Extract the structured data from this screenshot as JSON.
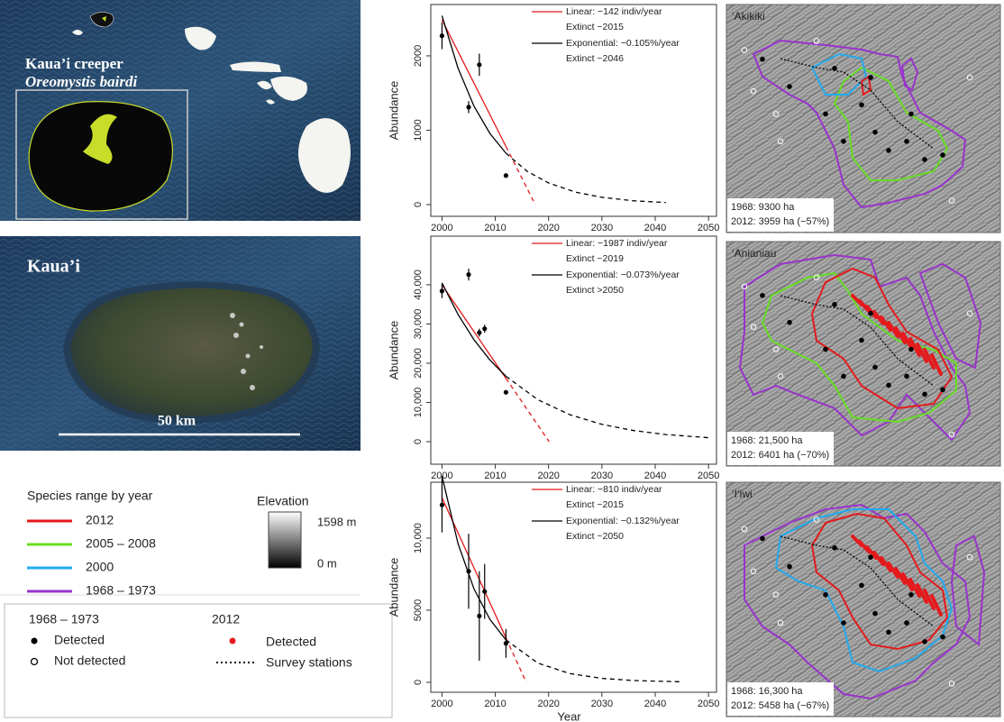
{
  "chart_data": [
    {
      "type": "scatter",
      "y_label": "Abundance",
      "xlim": [
        1997.9,
        2051.5
      ],
      "xticks": [
        2000,
        2010,
        2020,
        2030,
        2040,
        2050
      ],
      "ylim": [
        -158,
        2690
      ],
      "yticks": [
        0,
        1000,
        2000
      ],
      "points": {
        "x": [
          2000,
          2005,
          2007,
          2012
        ],
        "values": [
          2270,
          1310,
          1880,
          390
        ],
        "errors": [
          180,
          80,
          150,
          null
        ]
      },
      "series": [
        {
          "name": "Linear: −142 indiv/year",
          "extinct": "Extinct ~2015",
          "color": "#e41a1c",
          "x": [
            2000,
            2012
          ],
          "values": [
            2485,
            781
          ],
          "projection": {
            "x": [
              2012,
              2017.5
            ],
            "values": [
              781,
              0
            ]
          }
        },
        {
          "name": "Exponential: −0.105%/year",
          "extinct": "Extinct ~2046",
          "color": "#000000",
          "x": [
            2000,
            2003,
            2006,
            2009,
            2012
          ],
          "values": [
            2540,
            1834,
            1324,
            956,
            690
          ],
          "projection": {
            "x": [
              2012,
              2016,
              2020,
              2025,
              2030,
              2036,
              2042
            ],
            "values": [
              690,
              447,
              290,
              168,
              98,
              51,
              27
            ]
          }
        }
      ]
    },
    {
      "type": "scatter",
      "y_label": "Abundance",
      "xlim": [
        1997.9,
        2051.5
      ],
      "xticks": [
        2000,
        2010,
        2020,
        2030,
        2040,
        2050
      ],
      "ylim": [
        -5750,
        52400
      ],
      "yticks": [
        0,
        {
          "value": 10000,
          "label": "10,000"
        },
        {
          "value": 20000,
          "label": "20,000"
        },
        {
          "value": 30000,
          "label": "30,000"
        },
        {
          "value": 40000,
          "label": "40,000"
        }
      ],
      "points": {
        "x": [
          2000,
          2005,
          2007,
          2008,
          2012
        ],
        "values": [
          38400,
          42600,
          27800,
          28800,
          12600
        ],
        "errors": [
          1800,
          1500,
          1000,
          1000,
          null
        ]
      },
      "series": [
        {
          "name": "Linear: −1987 indiv/year",
          "extinct": "Extinct ~2019",
          "color": "#e41a1c",
          "x": [
            2000,
            2012
          ],
          "values": [
            40000,
            16156
          ],
          "projection": {
            "x": [
              2012,
              2020.1
            ],
            "values": [
              16156,
              0
            ]
          }
        },
        {
          "name": "Exponential: −0.073%/year",
          "extinct": "Extinct >2050",
          "color": "#000000",
          "x": [
            2000,
            2003,
            2006,
            2009,
            2012
          ],
          "values": [
            40500,
            32440,
            25980,
            20810,
            16670
          ],
          "projection": {
            "x": [
              2012,
              2018,
              2024,
              2030,
              2036,
              2042,
              2050
            ],
            "values": [
              16670,
              10690,
              6860,
              4400,
              2820,
              1810,
              1000
            ]
          }
        }
      ]
    },
    {
      "type": "scatter",
      "y_label": "Abundance",
      "x_label": "Year",
      "xlim": [
        1997.9,
        2051.5
      ],
      "xticks": [
        2000,
        2010,
        2020,
        2030,
        2040,
        2050
      ],
      "ylim": [
        -690,
        13875
      ],
      "yticks": [
        0,
        5000,
        {
          "value": 10000,
          "label": "10,000"
        }
      ],
      "points": {
        "x": [
          2000,
          2005,
          2007,
          2008,
          2012
        ],
        "values": [
          12300,
          7700,
          4600,
          6300,
          2700
        ],
        "errors": [
          1900,
          2600,
          3100,
          1900,
          1000
        ]
      },
      "series": [
        {
          "name": "Linear: −810 indiv/year",
          "extinct": "Extinct ~2015",
          "color": "#e41a1c",
          "x": [
            2000,
            2012
          ],
          "values": [
            12800,
            3080
          ],
          "projection": {
            "x": [
              2012,
              2015.8
            ],
            "values": [
              3080,
              0
            ]
          }
        },
        {
          "name": "Exponential: −0.132%/year",
          "extinct": "Extinct ~2050",
          "color": "#000000",
          "x": [
            2000,
            2003,
            2006,
            2009,
            2012
          ],
          "values": [
            14300,
            9624,
            6477,
            4359,
            2933
          ],
          "projection": {
            "x": [
              2012,
              2018,
              2024,
              2030,
              2036,
              2045
            ],
            "values": [
              2933,
              1329,
              602,
              273,
              124,
              38
            ]
          }
        }
      ]
    }
  ],
  "figure": {
    "map_hawaii": {
      "common_name": "Kaua’i creeper",
      "latin_name": "Oreomystis bairdi"
    },
    "map_kauai": {
      "label": "Kaua’i",
      "scale": "50 km"
    },
    "range_legend": {
      "title": "Species range by year",
      "entries": [
        {
          "label": "2012",
          "color": "#e41a1c"
        },
        {
          "label": "2005 – 2008",
          "color": "#66dd22"
        },
        {
          "label": "2000",
          "color": "#22aaee"
        },
        {
          "label": "1968 – 1973",
          "color": "#9933cc"
        }
      ]
    },
    "elevation_legend": {
      "title": "Elevation",
      "max": "1598 m",
      "min": "0 m"
    },
    "points_legend": {
      "period_old": "1968 – 1973",
      "detected_old": "Detected",
      "not_detected": "Not detected",
      "period_new": "2012",
      "detected_new": "Detected",
      "survey": "Survey stations"
    },
    "range_maps": [
      {
        "species": "‘Akikiki",
        "area_old": "1968: 9300 ha",
        "area_new": "2012: 3959 ha (−57%)"
      },
      {
        "species": "‘Anianiau",
        "area_old": "1968: 21,500 ha",
        "area_new": "2012: 6401 ha (−70%)"
      },
      {
        "species": "‘I‘iwi",
        "area_old": "1968: 16,300 ha",
        "area_new": "2012: 5458 ha (−67%)"
      }
    ]
  }
}
